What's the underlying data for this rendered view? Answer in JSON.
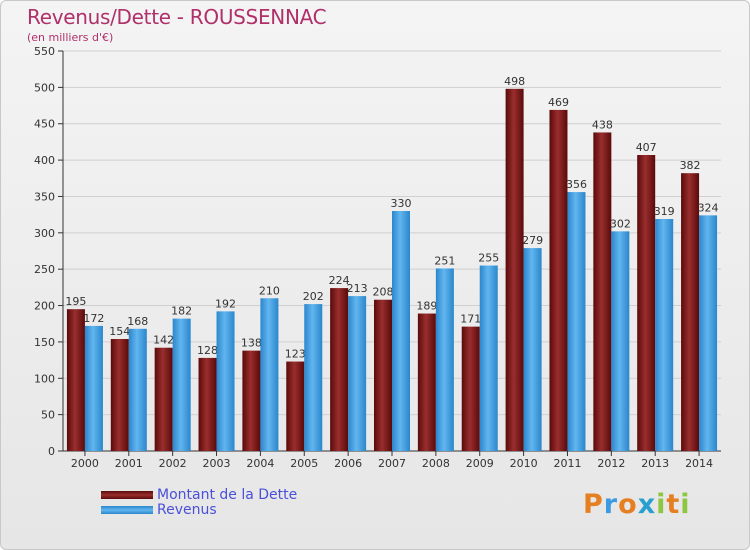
{
  "title": "Revenus/Dette - ROUSSENNAC",
  "subtitle": "(en milliers d'€)",
  "colors": {
    "dette": "#7a1414",
    "revenus": "#3a9be0",
    "title": "#b0306a",
    "legend_text": "#4a50d8"
  },
  "logo": {
    "letters": [
      "P",
      "r",
      "o",
      "x",
      "i",
      "t",
      "i"
    ],
    "colors": [
      "#e67e22",
      "#3a9be0",
      "#e67e22",
      "#27a0d0",
      "#8dc63f",
      "#e67e22",
      "#8dc63f"
    ]
  },
  "chart_data": {
    "type": "bar",
    "title": "Revenus/Dette - ROUSSENNAC",
    "subtitle": "(en milliers d'€)",
    "categories": [
      "2000",
      "2001",
      "2002",
      "2003",
      "2004",
      "2005",
      "2006",
      "2007",
      "2008",
      "2009",
      "2010",
      "2011",
      "2012",
      "2013",
      "2014"
    ],
    "series": [
      {
        "name": "Montant de la Dette",
        "values": [
          195,
          154,
          142,
          128,
          138,
          123,
          224,
          208,
          189,
          171,
          498,
          469,
          438,
          407,
          382
        ]
      },
      {
        "name": "Revenus",
        "values": [
          172,
          168,
          182,
          192,
          210,
          202,
          213,
          330,
          251,
          255,
          279,
          356,
          302,
          319,
          324
        ]
      }
    ],
    "ylim": [
      0,
      550
    ],
    "yticks": [
      0,
      50,
      100,
      150,
      200,
      250,
      300,
      350,
      400,
      450,
      500,
      550
    ],
    "grid": true,
    "legend_position": "bottom-left"
  }
}
